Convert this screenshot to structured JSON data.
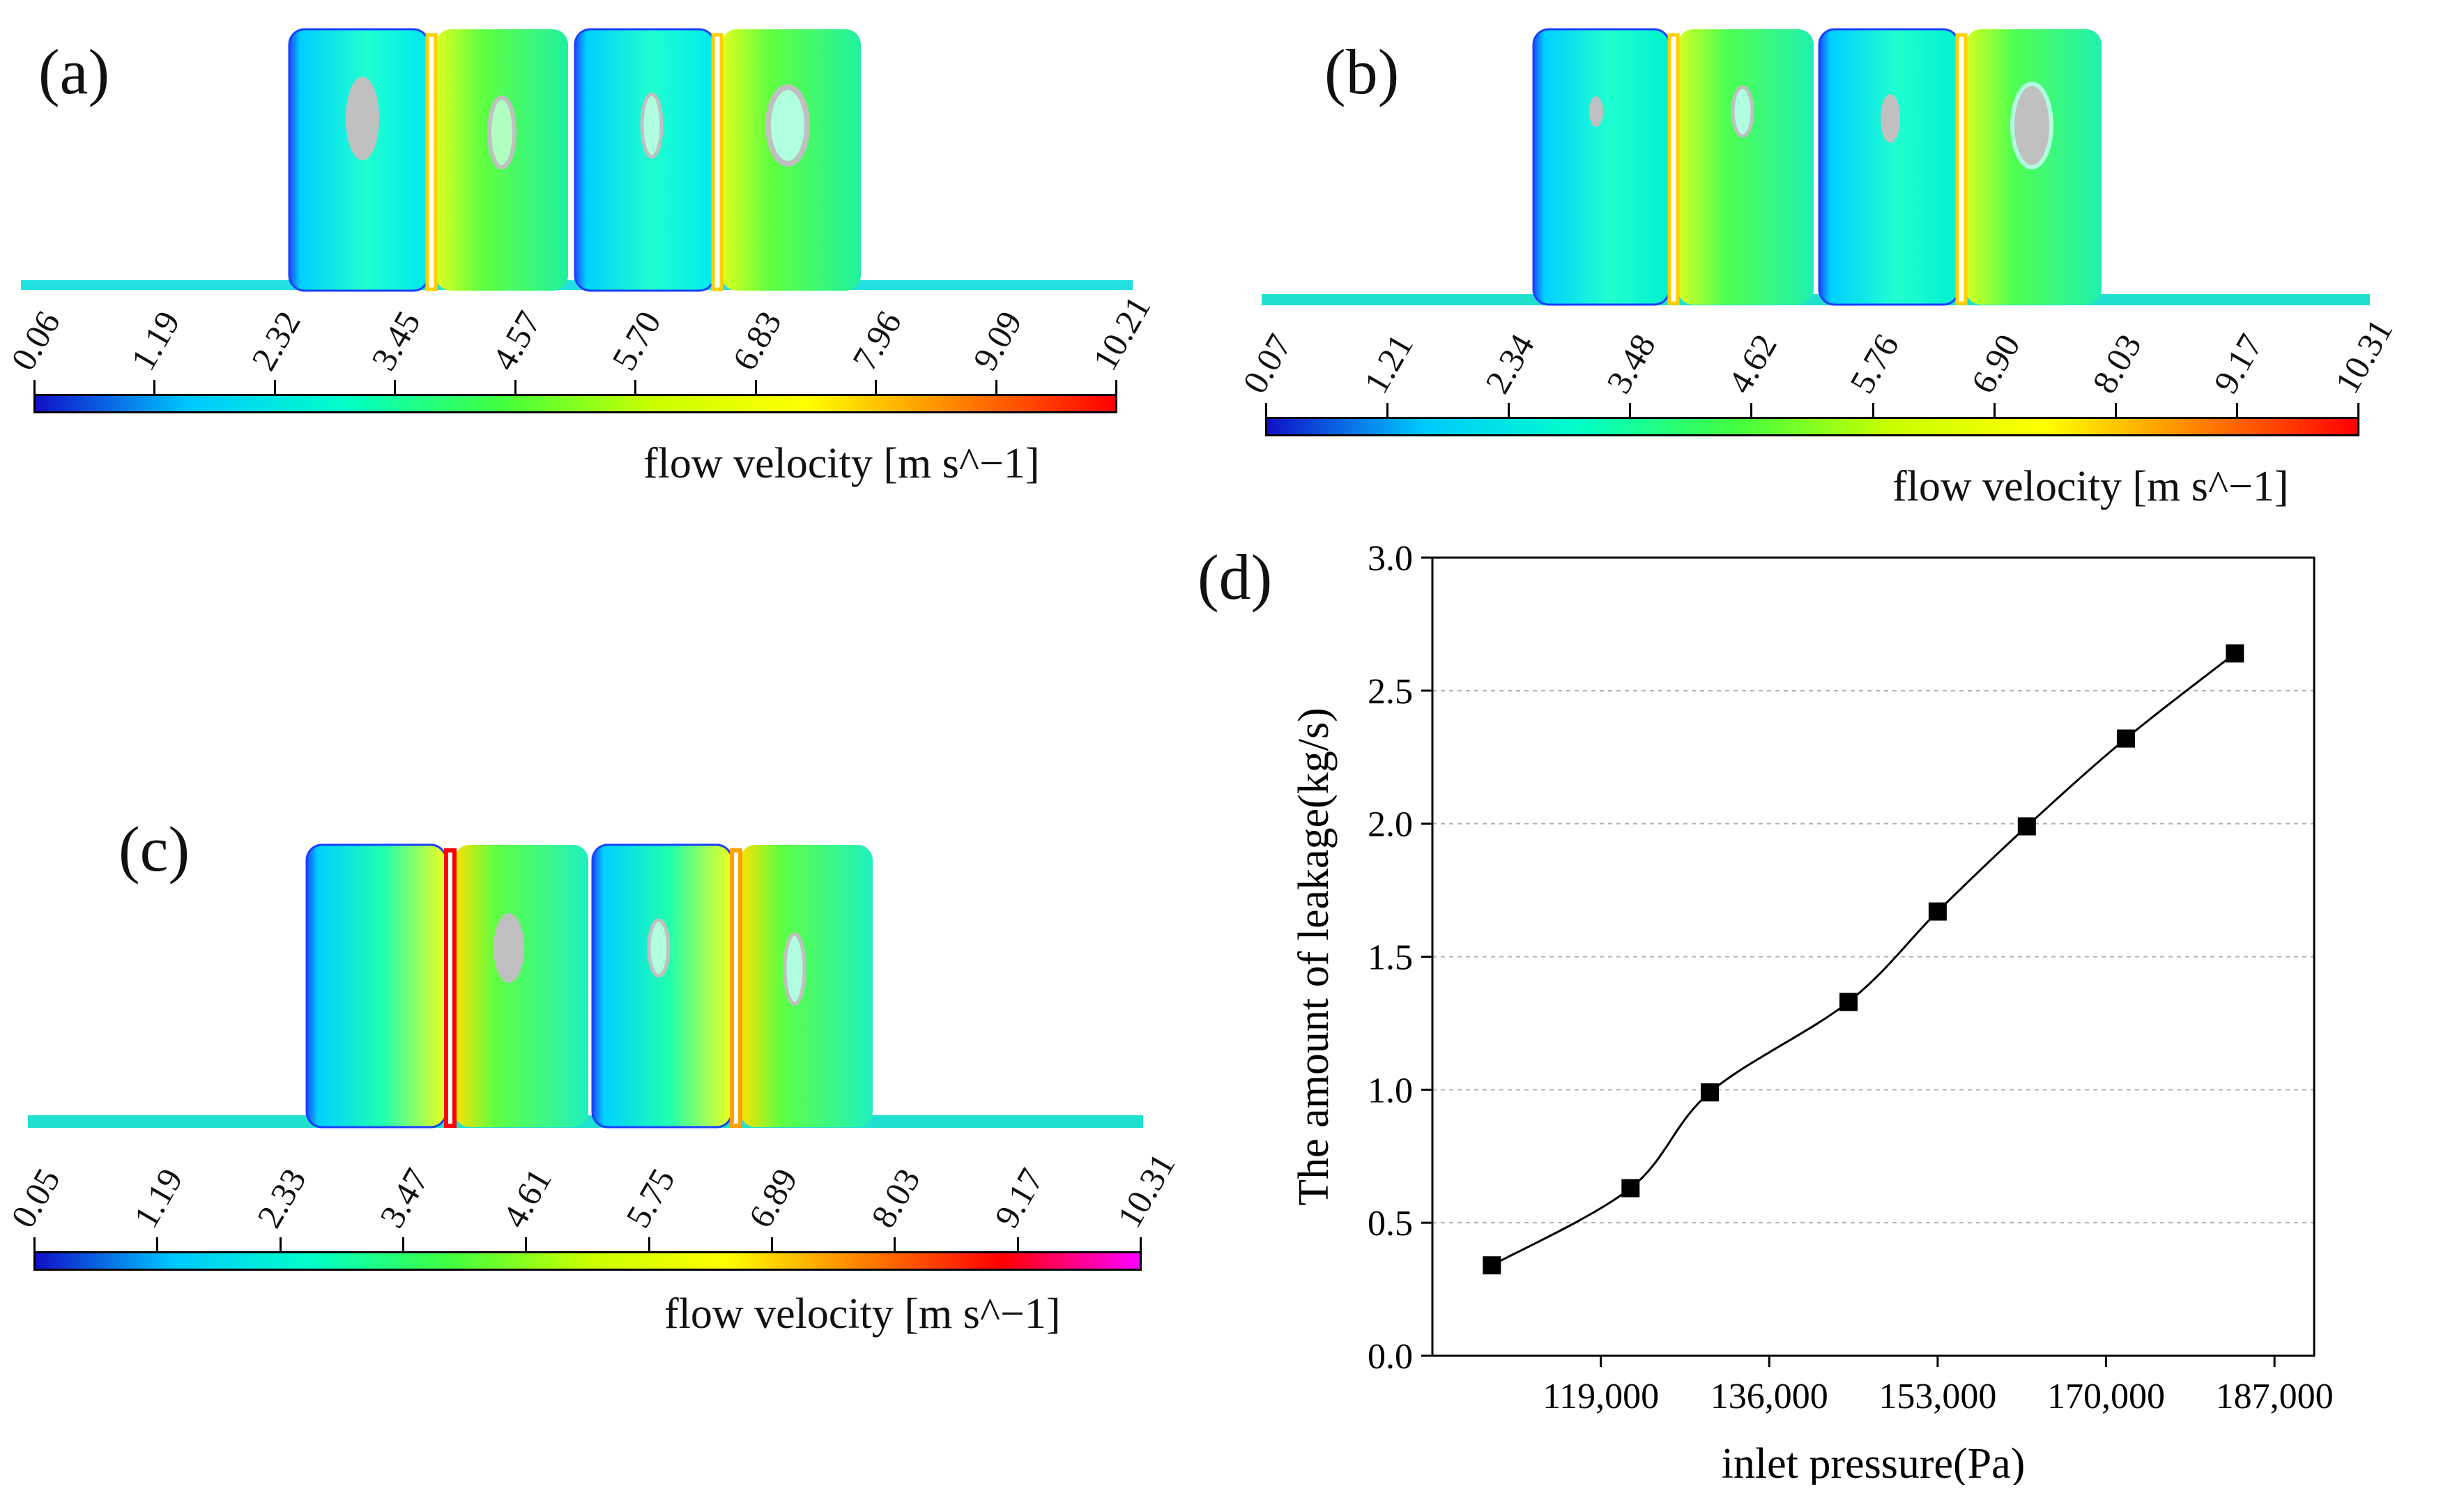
{
  "panels": {
    "a": {
      "label": "(a)",
      "colorbar": {
        "ticks": [
          "0.06",
          "1.19",
          "2.32",
          "3.45",
          "4.57",
          "5.70",
          "6.83",
          "7.96",
          "9.09",
          "10.21"
        ],
        "unit": "flow velocity [m s^−1]"
      }
    },
    "b": {
      "label": "(b)",
      "colorbar": {
        "ticks": [
          "0.07",
          "1.21",
          "2.34",
          "3.48",
          "4.62",
          "5.76",
          "6.90",
          "8.03",
          "9.17",
          "10.31"
        ],
        "unit": "flow velocity [m s^−1]"
      }
    },
    "c": {
      "label": "(c)",
      "colorbar": {
        "ticks": [
          "0.05",
          "1.19",
          "2.33",
          "3.47",
          "4.61",
          "5.75",
          "6.89",
          "8.03",
          "9.17",
          "10.31"
        ],
        "unit": "flow velocity [m s^−1]"
      }
    },
    "d": {
      "label": "(d)"
    }
  },
  "colors": {
    "velocity_scale": [
      "#1010c8",
      "#00c8ff",
      "#00ffc8",
      "#40ff40",
      "#c8ff00",
      "#ffff00",
      "#ff8000",
      "#ff0000"
    ],
    "velocity_scale_c": [
      "#1010c8",
      "#00c8ff",
      "#00ffc8",
      "#40ff40",
      "#c8ff00",
      "#ffff00",
      "#ff8000",
      "#ff0000",
      "#ff00ff"
    ],
    "grey_region": "#c0c0c0",
    "line": "#000000"
  },
  "chart_data": {
    "type": "line",
    "title": "",
    "xlabel": "inlet pressure(Pa)",
    "ylabel": "The amount of leakage(kg/s)",
    "xlim": [
      102000,
      191000
    ],
    "ylim": [
      0.0,
      3.0
    ],
    "xticks": [
      119000,
      136000,
      153000,
      170000,
      187000
    ],
    "xtick_labels": [
      "119,000",
      "136,000",
      "153,000",
      "170,000",
      "187,000"
    ],
    "yticks": [
      0.0,
      0.5,
      1.0,
      1.5,
      2.0,
      2.5,
      3.0
    ],
    "ytick_labels": [
      "0.0",
      "0.5",
      "1.0",
      "1.5",
      "2.0",
      "2.5",
      "3.0"
    ],
    "grid": true,
    "series": [
      {
        "name": "leakage",
        "marker": "square",
        "x": [
          108000,
          122000,
          130000,
          144000,
          153000,
          162000,
          172000,
          183000
        ],
        "y": [
          0.34,
          0.63,
          0.99,
          1.33,
          1.67,
          1.99,
          2.32,
          2.64
        ]
      }
    ]
  }
}
